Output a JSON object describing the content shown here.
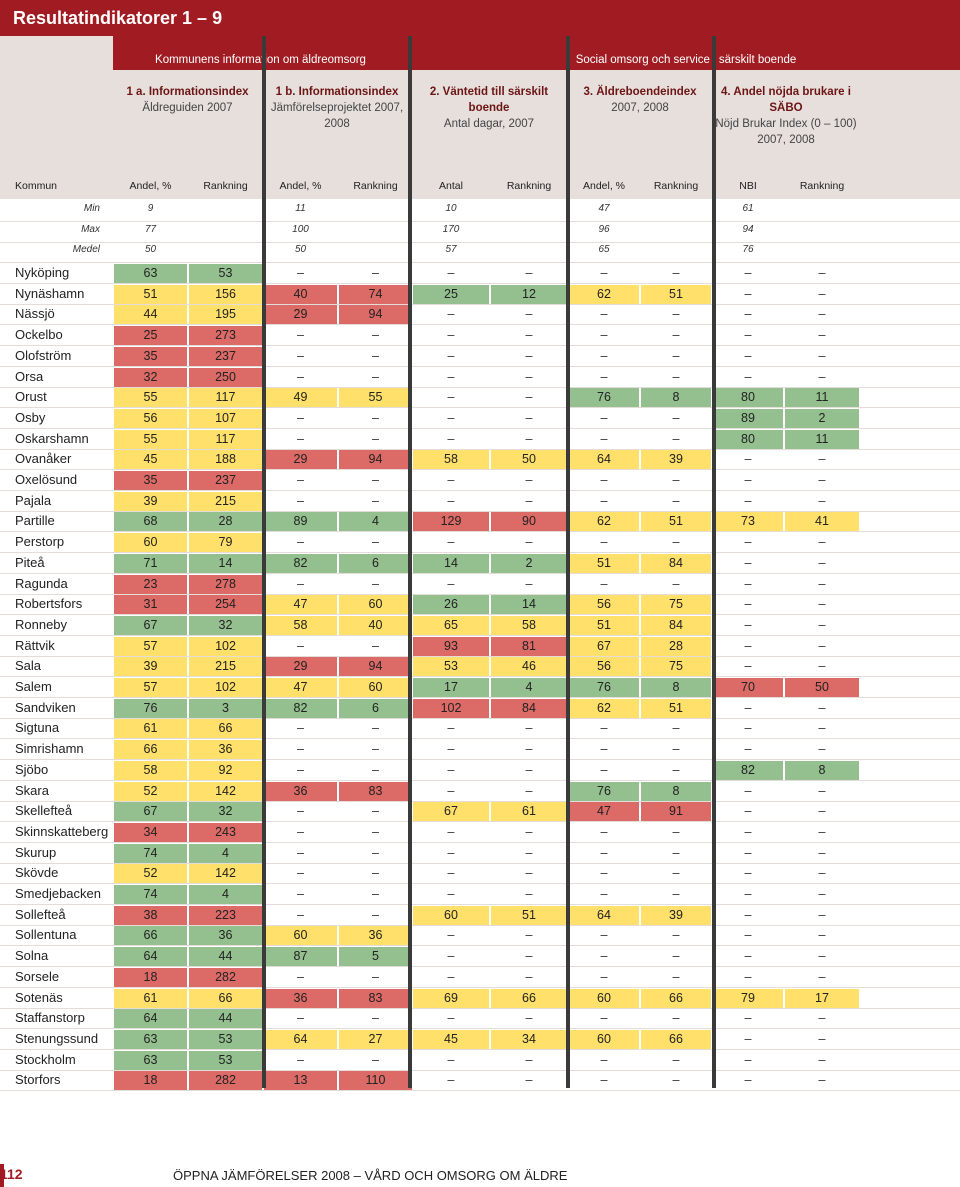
{
  "title": "Resultatindikatorer 1 – 9",
  "groups": {
    "left": "Kommunens information om äldreomsorg",
    "right": "Social omsorg och service i särskilt boende"
  },
  "sections": [
    {
      "title": "1 a. Informationsindex",
      "sub": "Äldreguiden 2007"
    },
    {
      "title": "1 b. Informationsindex",
      "sub": "Jämförelseprojektet 2007, 2008"
    },
    {
      "title": "2. Väntetid till särskilt boende",
      "sub": "Antal dagar, 2007"
    },
    {
      "title": "3. Äldreboendeindex",
      "sub": "2007, 2008"
    },
    {
      "title": "4. Andel nöjda brukare i SÄBO",
      "sub": "Nöjd Brukar Index (0 – 100) 2007, 2008"
    }
  ],
  "columns": [
    "Kommun",
    "Andel, %",
    "Rankning",
    "Andel, %",
    "Rankning",
    "Antal",
    "Rankning",
    "Andel, %",
    "Rankning",
    "NBI",
    "Rankning"
  ],
  "stats": [
    {
      "label": "Min",
      "vals": [
        "9",
        "11",
        "10",
        "47",
        "61"
      ]
    },
    {
      "label": "Max",
      "vals": [
        "77",
        "100",
        "170",
        "96",
        "94"
      ]
    },
    {
      "label": "Medel",
      "vals": [
        "50",
        "50",
        "57",
        "65",
        "76"
      ]
    }
  ],
  "rows": [
    {
      "n": "Nyköping",
      "v": [
        [
          "63",
          "g"
        ],
        [
          "53",
          "g"
        ],
        null,
        null,
        null
      ]
    },
    {
      "n": "Nynäshamn",
      "v": [
        [
          "51",
          "y"
        ],
        [
          "156",
          "y"
        ],
        [
          [
            "40",
            "r"
          ],
          [
            "74",
            "r"
          ]
        ],
        [
          [
            "25",
            "g"
          ],
          [
            "12",
            "g"
          ]
        ],
        [
          [
            "62",
            "y"
          ],
          [
            "51",
            "y"
          ]
        ],
        null
      ]
    },
    {
      "n": "Nässjö",
      "v": [
        [
          "44",
          "y"
        ],
        [
          "195",
          "y"
        ],
        [
          [
            "29",
            "r"
          ],
          [
            "94",
            "r"
          ]
        ],
        null,
        null,
        null
      ]
    },
    {
      "n": "Ockelbo",
      "v": [
        [
          "25",
          "r"
        ],
        [
          "273",
          "r"
        ],
        null,
        null,
        null,
        null
      ]
    },
    {
      "n": "Olofström",
      "v": [
        [
          "35",
          "r"
        ],
        [
          "237",
          "r"
        ],
        null,
        null,
        null,
        null
      ]
    },
    {
      "n": "Orsa",
      "v": [
        [
          "32",
          "r"
        ],
        [
          "250",
          "r"
        ],
        null,
        null,
        null,
        null
      ]
    },
    {
      "n": "Orust",
      "v": [
        [
          "55",
          "y"
        ],
        [
          "117",
          "y"
        ],
        [
          [
            "49",
            "y"
          ],
          [
            "55",
            "y"
          ]
        ],
        null,
        [
          [
            "76",
            "g"
          ],
          [
            "8",
            "g"
          ]
        ],
        [
          [
            "80",
            "g"
          ],
          [
            "11",
            "g"
          ]
        ]
      ]
    },
    {
      "n": "Osby",
      "v": [
        [
          "56",
          "y"
        ],
        [
          "107",
          "y"
        ],
        null,
        null,
        null,
        [
          [
            "89",
            "g"
          ],
          [
            "2",
            "g"
          ]
        ]
      ]
    },
    {
      "n": "Oskarshamn",
      "v": [
        [
          "55",
          "y"
        ],
        [
          "117",
          "y"
        ],
        null,
        null,
        null,
        [
          [
            "80",
            "g"
          ],
          [
            "11",
            "g"
          ]
        ]
      ]
    },
    {
      "n": "Ovanåker",
      "v": [
        [
          "45",
          "y"
        ],
        [
          "188",
          "y"
        ],
        [
          [
            "29",
            "r"
          ],
          [
            "94",
            "r"
          ]
        ],
        [
          [
            "58",
            "y"
          ],
          [
            "50",
            "y"
          ]
        ],
        [
          [
            "64",
            "y"
          ],
          [
            "39",
            "y"
          ]
        ],
        null
      ]
    },
    {
      "n": "Oxelösund",
      "v": [
        [
          "35",
          "r"
        ],
        [
          "237",
          "r"
        ],
        null,
        null,
        null,
        null
      ]
    },
    {
      "n": "Pajala",
      "v": [
        [
          "39",
          "y"
        ],
        [
          "215",
          "y"
        ],
        null,
        null,
        null,
        null
      ]
    },
    {
      "n": "Partille",
      "v": [
        [
          "68",
          "g"
        ],
        [
          "28",
          "g"
        ],
        [
          [
            "89",
            "g"
          ],
          [
            "4",
            "g"
          ]
        ],
        [
          [
            "129",
            "r"
          ],
          [
            "90",
            "r"
          ]
        ],
        [
          [
            "62",
            "y"
          ],
          [
            "51",
            "y"
          ]
        ],
        [
          [
            "73",
            "y"
          ],
          [
            "41",
            "y"
          ]
        ]
      ]
    },
    {
      "n": "Perstorp",
      "v": [
        [
          "60",
          "y"
        ],
        [
          "79",
          "y"
        ],
        null,
        null,
        null,
        null
      ]
    },
    {
      "n": "Piteå",
      "v": [
        [
          "71",
          "g"
        ],
        [
          "14",
          "g"
        ]
      ],
      "m": [
        [
          [
            "82",
            "g"
          ],
          [
            "6",
            "g"
          ]
        ],
        [
          [
            "14",
            "g"
          ],
          [
            "2",
            "g"
          ]
        ],
        [
          [
            "51",
            "y"
          ],
          [
            "84",
            "y"
          ]
        ],
        null
      ]
    },
    {
      "n": "Ragunda",
      "v": [
        [
          "23",
          "r"
        ],
        [
          "278",
          "r"
        ]
      ],
      "m": [
        null,
        null,
        null,
        null
      ]
    },
    {
      "n": "Robertsfors",
      "v": [
        [
          "31",
          "r"
        ],
        [
          "254",
          "r"
        ]
      ],
      "m": [
        [
          [
            "47",
            "y"
          ],
          [
            "60",
            "y"
          ]
        ],
        [
          [
            "26",
            "g"
          ],
          [
            "14",
            "g"
          ]
        ],
        [
          [
            "56",
            "y"
          ],
          [
            "75",
            "y"
          ]
        ],
        null
      ]
    },
    {
      "n": "Ronneby",
      "v": [
        [
          "67",
          "g"
        ],
        [
          "32",
          "g"
        ]
      ],
      "m": [
        [
          [
            "58",
            "y"
          ],
          [
            "40",
            "y"
          ]
        ],
        [
          [
            "65",
            "y"
          ],
          [
            "58",
            "y"
          ]
        ],
        [
          [
            "51",
            "y"
          ],
          [
            "84",
            "y"
          ]
        ],
        null
      ]
    },
    {
      "n": "Rättvik",
      "v": [
        [
          "57",
          "y"
        ],
        [
          "102",
          "y"
        ]
      ],
      "m": [
        null,
        [
          [
            "93",
            "r"
          ],
          [
            "81",
            "r"
          ]
        ],
        [
          [
            "67",
            "y"
          ],
          [
            "28",
            "y"
          ]
        ],
        null
      ]
    },
    {
      "n": "Sala",
      "v": [
        [
          "39",
          "y"
        ],
        [
          "215",
          "y"
        ]
      ],
      "m": [
        [
          [
            "29",
            "r"
          ],
          [
            "94",
            "r"
          ]
        ],
        [
          [
            "53",
            "y"
          ],
          [
            "46",
            "y"
          ]
        ],
        [
          [
            "56",
            "y"
          ],
          [
            "75",
            "y"
          ]
        ],
        null
      ]
    },
    {
      "n": "Salem",
      "v": [
        [
          "57",
          "y"
        ],
        [
          "102",
          "y"
        ]
      ],
      "m": [
        [
          [
            "47",
            "y"
          ],
          [
            "60",
            "y"
          ]
        ],
        [
          [
            "17",
            "g"
          ],
          [
            "4",
            "g"
          ]
        ],
        [
          [
            "76",
            "g"
          ],
          [
            "8",
            "g"
          ]
        ],
        [
          [
            "70",
            "r"
          ],
          [
            "50",
            "r"
          ]
        ]
      ]
    },
    {
      "n": "Sandviken",
      "v": [
        [
          "76",
          "g"
        ],
        [
          "3",
          "g"
        ]
      ],
      "m": [
        [
          [
            "82",
            "g"
          ],
          [
            "6",
            "g"
          ]
        ],
        [
          [
            "102",
            "r"
          ],
          [
            "84",
            "r"
          ]
        ],
        [
          [
            "62",
            "y"
          ],
          [
            "51",
            "y"
          ]
        ],
        null
      ]
    },
    {
      "n": "Sigtuna",
      "v": [
        [
          "61",
          "y"
        ],
        [
          "66",
          "y"
        ]
      ],
      "m": [
        null,
        null,
        null,
        null
      ]
    },
    {
      "n": "Simrishamn",
      "v": [
        [
          "66",
          "y"
        ],
        [
          "36",
          "y"
        ]
      ],
      "m": [
        null,
        null,
        null,
        null
      ]
    },
    {
      "n": "Sjöbo",
      "v": [
        [
          "58",
          "y"
        ],
        [
          "92",
          "y"
        ]
      ],
      "m": [
        null,
        null,
        null,
        [
          [
            "82",
            "g"
          ],
          [
            "8",
            "g"
          ]
        ]
      ]
    },
    {
      "n": "Skara",
      "v": [
        [
          "52",
          "y"
        ],
        [
          "142",
          "y"
        ]
      ],
      "m": [
        [
          [
            "36",
            "r"
          ],
          [
            "83",
            "r"
          ]
        ],
        null,
        [
          [
            "76",
            "g"
          ],
          [
            "8",
            "g"
          ]
        ],
        null
      ]
    },
    {
      "n": "Skellefteå",
      "v": [
        [
          "67",
          "g"
        ],
        [
          "32",
          "g"
        ]
      ],
      "m": [
        null,
        [
          [
            "67",
            "y"
          ],
          [
            "61",
            "y"
          ]
        ],
        [
          [
            "47",
            "r"
          ],
          [
            "91",
            "r"
          ]
        ],
        null
      ]
    },
    {
      "n": "Skinnskatteberg",
      "v": [
        [
          "34",
          "r"
        ],
        [
          "243",
          "r"
        ]
      ],
      "m": [
        null,
        null,
        null,
        null
      ]
    },
    {
      "n": "Skurup",
      "v": [
        [
          "74",
          "g"
        ],
        [
          "4",
          "g"
        ]
      ],
      "m": [
        null,
        null,
        null,
        null
      ]
    },
    {
      "n": "Skövde",
      "v": [
        [
          "52",
          "y"
        ],
        [
          "142",
          "y"
        ]
      ],
      "m": [
        null,
        null,
        null,
        null
      ]
    },
    {
      "n": "Smedjebacken",
      "v": [
        [
          "74",
          "g"
        ],
        [
          "4",
          "g"
        ]
      ],
      "m": [
        null,
        null,
        null,
        null
      ]
    },
    {
      "n": "Sollefteå",
      "v": [
        [
          "38",
          "r"
        ],
        [
          "223",
          "r"
        ]
      ],
      "m": [
        null,
        [
          [
            "60",
            "y"
          ],
          [
            "51",
            "y"
          ]
        ],
        [
          [
            "64",
            "y"
          ],
          [
            "39",
            "y"
          ]
        ],
        null
      ]
    },
    {
      "n": "Sollentuna",
      "v": [
        [
          "66",
          "g"
        ],
        [
          "36",
          "g"
        ]
      ],
      "m": [
        [
          [
            "60",
            "y"
          ],
          [
            "36",
            "y"
          ]
        ],
        null,
        null,
        null
      ]
    },
    {
      "n": "Solna",
      "v": [
        [
          "64",
          "g"
        ],
        [
          "44",
          "g"
        ]
      ],
      "m": [
        [
          [
            "87",
            "g"
          ],
          [
            "5",
            "g"
          ]
        ],
        null,
        null,
        null
      ]
    },
    {
      "n": "Sorsele",
      "v": [
        [
          "18",
          "r"
        ],
        [
          "282",
          "r"
        ]
      ],
      "m": [
        null,
        null,
        null,
        null
      ]
    },
    {
      "n": "Sotenäs",
      "v": [
        [
          "61",
          "y"
        ],
        [
          "66",
          "y"
        ]
      ],
      "m": [
        [
          [
            "36",
            "r"
          ],
          [
            "83",
            "r"
          ]
        ],
        [
          [
            "69",
            "y"
          ],
          [
            "66",
            "y"
          ]
        ],
        [
          [
            "60",
            "y"
          ],
          [
            "66",
            "y"
          ]
        ],
        [
          [
            "79",
            "y"
          ],
          [
            "17",
            "y"
          ]
        ]
      ]
    },
    {
      "n": "Staffanstorp",
      "v": [
        [
          "64",
          "g"
        ],
        [
          "44",
          "g"
        ]
      ],
      "m": [
        null,
        null,
        null,
        null
      ]
    },
    {
      "n": "Stenungssund",
      "v": [
        [
          "63",
          "g"
        ],
        [
          "53",
          "g"
        ]
      ],
      "m": [
        [
          [
            "64",
            "y"
          ],
          [
            "27",
            "y"
          ]
        ],
        [
          [
            "45",
            "y"
          ],
          [
            "34",
            "y"
          ]
        ],
        [
          [
            "60",
            "y"
          ],
          [
            "66",
            "y"
          ]
        ],
        null
      ]
    },
    {
      "n": "Stockholm",
      "v": [
        [
          "63",
          "g"
        ],
        [
          "53",
          "g"
        ]
      ],
      "m": [
        null,
        null,
        null,
        null
      ]
    },
    {
      "n": "Storfors",
      "v": [
        [
          "18",
          "r"
        ],
        [
          "282",
          "r"
        ]
      ],
      "m": [
        [
          [
            "13",
            "r"
          ],
          [
            "110",
            "r"
          ]
        ],
        null,
        null,
        null
      ]
    }
  ],
  "footer": {
    "page": "112",
    "text": "ÖPPNA JÄMFÖRELSER 2008  –  VÅRD OCH OMSORG OM ÄLDRE"
  }
}
